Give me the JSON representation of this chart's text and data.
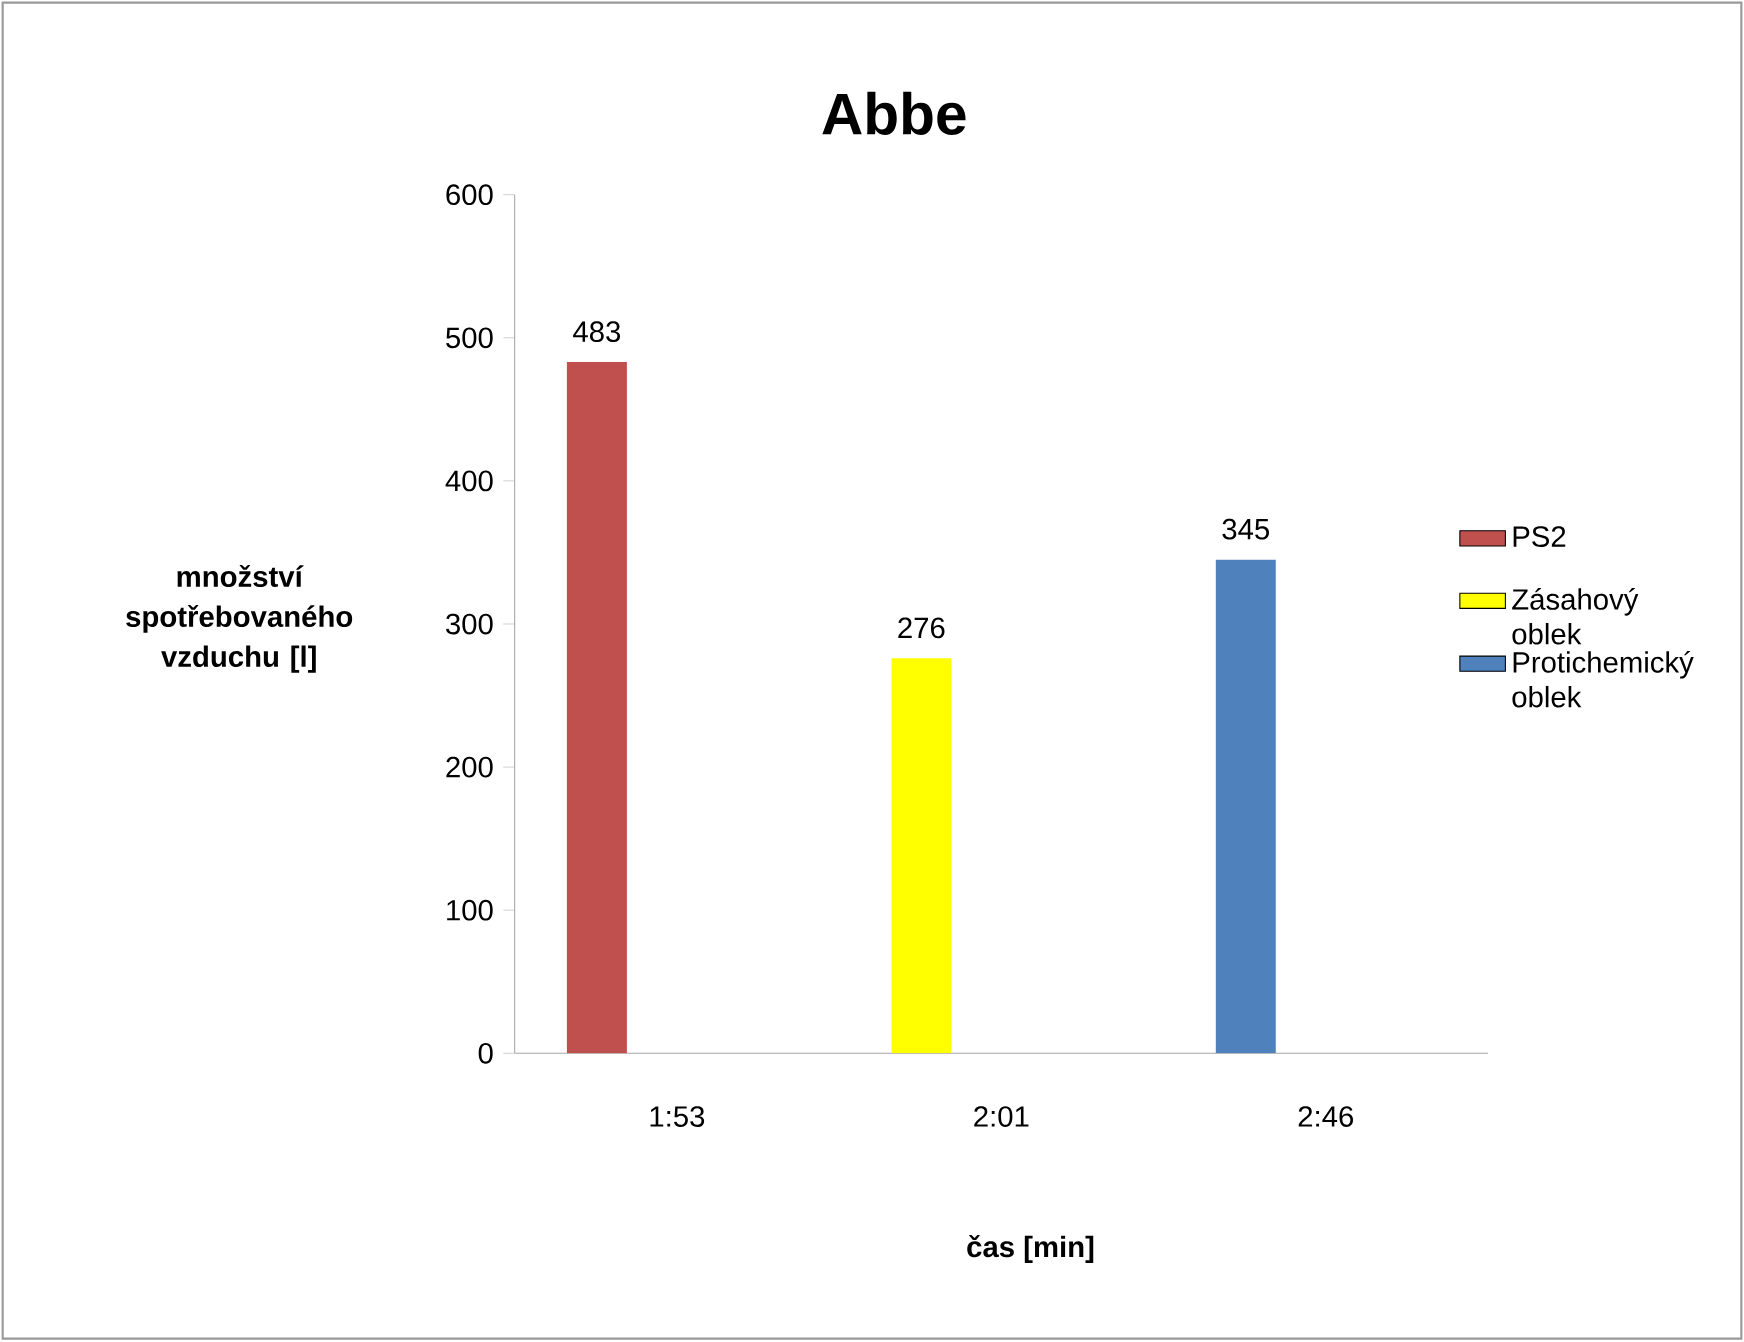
{
  "chart_data": {
    "type": "bar",
    "title": "Abbe",
    "xlabel": "čas [min]",
    "ylabel": "množství spotřebovaného vzduchu [l]",
    "categories": [
      "1:53",
      "2:01",
      "2:46"
    ],
    "series": [
      {
        "name": "PS2",
        "color": "#c0504d",
        "values": [
          483,
          null,
          null
        ]
      },
      {
        "name": "Zásahový oblek",
        "color": "#ffff00",
        "values": [
          null,
          276,
          null
        ]
      },
      {
        "name": "Protichemický oblek",
        "color": "#4f81bd",
        "values": [
          null,
          null,
          345
        ]
      }
    ],
    "ylim": [
      0,
      600
    ],
    "yticks": [
      0,
      100,
      200,
      300,
      400,
      500,
      600
    ],
    "data_labels": true,
    "legend": "right",
    "grid": false
  }
}
